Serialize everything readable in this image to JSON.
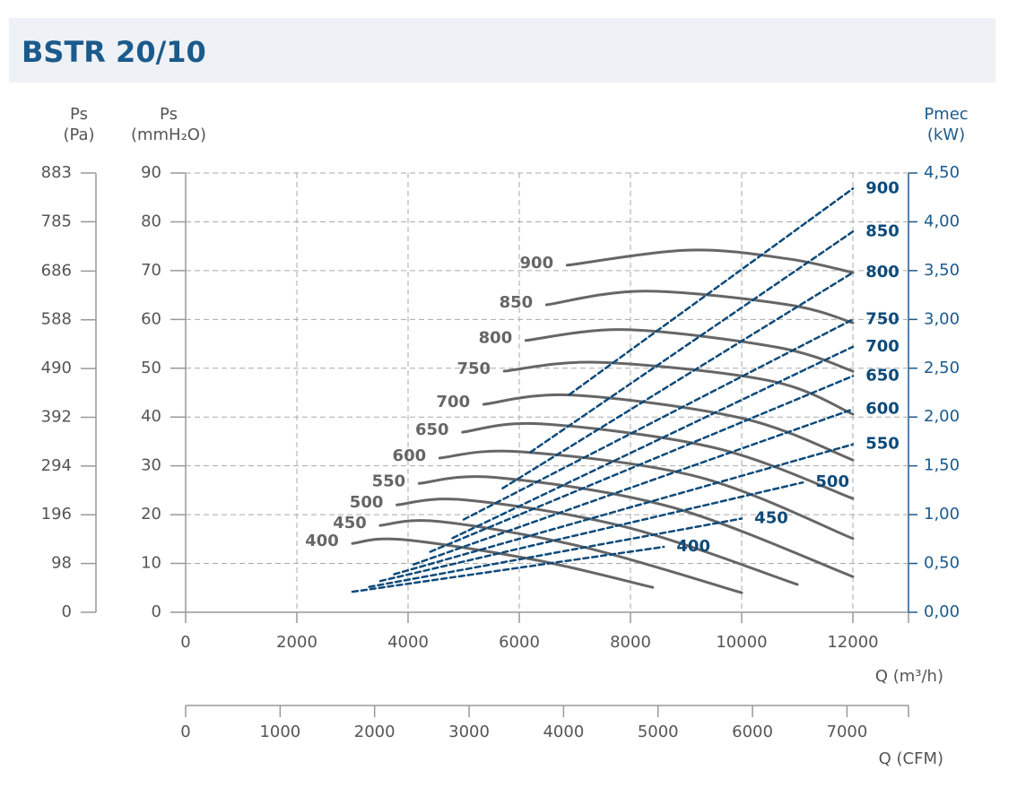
{
  "chart_data": {
    "type": "line",
    "title": "BSTR 20/10",
    "y_label_pa": [
      "Ps",
      "(Pa)"
    ],
    "y_label": [
      "Ps",
      "(mmH₂O)"
    ],
    "y2_label": [
      "Pmec",
      "(kW)"
    ],
    "x_label": "Q (m³/h)",
    "xlim": [
      0,
      13000
    ],
    "xticks": [
      0,
      2000,
      4000,
      6000,
      8000,
      10000,
      12000
    ],
    "ylim": [
      0,
      90
    ],
    "yticks": [
      0,
      10,
      20,
      30,
      40,
      50,
      60,
      70,
      80,
      90
    ],
    "grid": true,
    "pa_axis": {
      "ylim": [
        0,
        883
      ],
      "yticks": [
        0,
        98,
        196,
        294,
        392,
        490,
        588,
        686,
        785,
        883
      ]
    },
    "y2lim": [
      0,
      4.5
    ],
    "y2ticks": [
      {
        "value": 0,
        "label": "0,00"
      },
      {
        "value": 0.5,
        "label": "0,50"
      },
      {
        "value": 1,
        "label": "1,00"
      },
      {
        "value": 1.5,
        "label": "1,50"
      },
      {
        "value": 2,
        "label": "2,00"
      },
      {
        "value": 2.5,
        "label": "2,50"
      },
      {
        "value": 3,
        "label": "3,00"
      },
      {
        "value": 3.5,
        "label": "3,50"
      },
      {
        "value": 4,
        "label": "4,00"
      },
      {
        "value": 4.5,
        "label": "4,50"
      }
    ],
    "cfm_axis": {
      "label": "Q (CFM)",
      "xlim": [
        0,
        7651
      ],
      "xticks": [
        0,
        1000,
        2000,
        3000,
        4000,
        5000,
        6000,
        7000
      ]
    },
    "series": [
      {
        "name": "400",
        "color": "#666666",
        "x": [
          3000,
          3900,
          6300,
          8400
        ],
        "values": [
          14.1,
          14.9,
          10.7,
          5.1
        ]
      },
      {
        "name": "450",
        "color": "#666666",
        "x": [
          3500,
          4560,
          7140,
          10000
        ],
        "values": [
          17.8,
          18.6,
          13.4,
          4.0
        ]
      },
      {
        "name": "500",
        "color": "#666666",
        "x": [
          3800,
          5040,
          7940,
          11000
        ],
        "values": [
          22.0,
          23.0,
          17.4,
          5.7
        ]
      },
      {
        "name": "550",
        "color": "#666666",
        "x": [
          4200,
          5600,
          8750,
          12000
        ],
        "values": [
          26.4,
          27.6,
          21.5,
          7.3
        ]
      },
      {
        "name": "600",
        "color": "#666666",
        "x": [
          4570,
          6010,
          9230,
          12000
        ],
        "values": [
          31.6,
          32.9,
          27.7,
          15.1
        ]
      },
      {
        "name": "650",
        "color": "#666666",
        "x": [
          4980,
          6410,
          9550,
          12000
        ],
        "values": [
          36.9,
          38.6,
          33.6,
          23.3
        ]
      },
      {
        "name": "700",
        "color": "#666666",
        "x": [
          5360,
          6970,
          10030,
          12000
        ],
        "values": [
          42.6,
          44.5,
          39.7,
          31.2
        ]
      },
      {
        "name": "750",
        "color": "#666666",
        "x": [
          5730,
          7460,
          10520,
          12000
        ],
        "values": [
          49.4,
          51.2,
          47.4,
          40.6
        ]
      },
      {
        "name": "800",
        "color": "#666666",
        "x": [
          6120,
          7940,
          10680,
          12000
        ],
        "values": [
          55.7,
          57.9,
          54.2,
          49.4
        ]
      },
      {
        "name": "850",
        "color": "#666666",
        "x": [
          6490,
          8260,
          10840,
          12000
        ],
        "values": [
          63.0,
          65.8,
          63.0,
          59.3
        ]
      },
      {
        "name": "900",
        "color": "#666666",
        "x": [
          6860,
          9070,
          10840,
          12000
        ],
        "values": [
          71.1,
          74.2,
          72.4,
          69.6
        ]
      },
      {
        "name": "400",
        "color": "#0d4a7a",
        "axis": "y2",
        "dashed": true,
        "x": [
          3000,
          8600
        ],
        "values": [
          0.21,
          0.67
        ]
      },
      {
        "name": "450",
        "color": "#0d4a7a",
        "axis": "y2",
        "dashed": true,
        "x": [
          3300,
          10000
        ],
        "values": [
          0.26,
          0.96
        ]
      },
      {
        "name": "500",
        "color": "#0d4a7a",
        "axis": "y2",
        "dashed": true,
        "x": [
          3500,
          11100
        ],
        "values": [
          0.32,
          1.33
        ]
      },
      {
        "name": "550",
        "color": "#0d4a7a",
        "axis": "y2",
        "dashed": true,
        "x": [
          3750,
          12000
        ],
        "values": [
          0.39,
          1.72
        ]
      },
      {
        "name": "600",
        "color": "#0d4a7a",
        "axis": "y2",
        "dashed": true,
        "x": [
          4100,
          12000
        ],
        "values": [
          0.49,
          2.08
        ]
      },
      {
        "name": "650",
        "color": "#0d4a7a",
        "axis": "y2",
        "dashed": true,
        "x": [
          4400,
          12000
        ],
        "values": [
          0.62,
          2.42
        ]
      },
      {
        "name": "700",
        "color": "#0d4a7a",
        "axis": "y2",
        "dashed": true,
        "x": [
          4800,
          12000
        ],
        "values": [
          0.76,
          2.72
        ]
      },
      {
        "name": "750",
        "color": "#0d4a7a",
        "axis": "y2",
        "dashed": true,
        "x": [
          5000,
          12000
        ],
        "values": [
          0.95,
          3.0
        ]
      },
      {
        "name": "800",
        "color": "#0d4a7a",
        "axis": "y2",
        "dashed": true,
        "x": [
          5700,
          12000
        ],
        "values": [
          1.27,
          3.48
        ]
      },
      {
        "name": "850",
        "color": "#0d4a7a",
        "axis": "y2",
        "dashed": true,
        "x": [
          6200,
          12000
        ],
        "values": [
          1.64,
          3.9
        ]
      },
      {
        "name": "900",
        "color": "#0d4a7a",
        "axis": "y2",
        "dashed": true,
        "x": [
          6900,
          12000
        ],
        "values": [
          2.23,
          4.34
        ]
      }
    ]
  }
}
